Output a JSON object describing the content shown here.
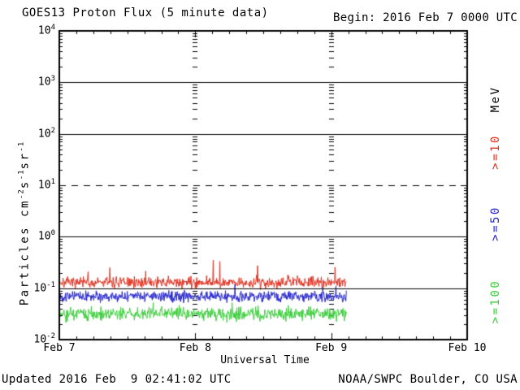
{
  "title": "GOES13 Proton Flux (5 minute data)",
  "begin_label": "Begin: 2016 Feb 7 0000 UTC",
  "footer": {
    "updated": "Updated 2016 Feb  9 02:41:02 UTC",
    "credit": "NOAA/SWPC Boulder, CO USA"
  },
  "axes": {
    "xlabel": "Universal Time",
    "x_ticks": [
      "Feb 7",
      "Feb 8",
      "Feb 9",
      "Feb 10"
    ],
    "y_exponents": [
      "4",
      "3",
      "2",
      "1",
      "0",
      "-1",
      "-2"
    ],
    "ylabel_parts": [
      [
        "t",
        "Particles cm"
      ],
      [
        "s",
        "-2"
      ],
      [
        "t",
        "s"
      ],
      [
        "s",
        "-1"
      ],
      [
        "t",
        "sr"
      ],
      [
        "s",
        "-1"
      ]
    ]
  },
  "right_labels": [
    {
      "text": "MeV",
      "color": "#000000"
    },
    {
      "text": ">=10",
      "color": "#e1301f"
    },
    {
      "text": ">=50",
      "color": "#2424cd"
    },
    {
      "text": ">=100",
      "color": "#3ccd3c"
    }
  ],
  "chart_data": {
    "type": "line",
    "title": "GOES13 Proton Flux (5 minute data)",
    "xlabel": "Universal Time",
    "ylabel": "Particles cm-2s-1sr-1",
    "x_axis": {
      "start": "2016 Feb 7 0000 UTC",
      "end": "2016 Feb 10 0000 UTC",
      "tick_labels": [
        "Feb 7",
        "Feb 8",
        "Feb 9",
        "Feb 10"
      ],
      "minor_tick_hours": 3,
      "interior_day_gridlines": [
        "Feb 8",
        "Feb 9"
      ]
    },
    "y_axis": {
      "scale": "log",
      "min": 0.01,
      "max": 10000,
      "decade_ticks": [
        10000,
        1000,
        100,
        10,
        1,
        0.1,
        0.01
      ],
      "solid_gridlines": [
        1000,
        100,
        1,
        0.1
      ],
      "dashed_gridline": 10
    },
    "cadence_minutes": 5,
    "data_duration_days": 2.112,
    "data_end": "2016 Feb 9 ~0241 UTC",
    "series": [
      {
        "name": ">=10 MeV",
        "color": "#e1301f",
        "approx_mean": 0.13,
        "approx_min": 0.08,
        "approx_max": 0.38,
        "seed": 7,
        "log10_mean": -0.885,
        "log10_sd": 0.075,
        "spike_prob": 0.02,
        "spike_amp": 0.45,
        "floor": 0.078
      },
      {
        "name": ">=50 MeV",
        "color": "#2424cd",
        "approx_mean": 0.07,
        "approx_min": 0.042,
        "approx_max": 0.13,
        "seed": 13,
        "log10_mean": -1.16,
        "log10_sd": 0.07,
        "spike_prob": 0.012,
        "spike_amp": 0.22,
        "floor": 0.04
      },
      {
        "name": ">=100 MeV",
        "color": "#3ccd3c",
        "approx_mean": 0.031,
        "approx_min": 0.017,
        "approx_max": 0.07,
        "seed": 21,
        "log10_mean": -1.5,
        "log10_sd": 0.09,
        "spike_prob": 0.012,
        "spike_amp": 0.25,
        "floor": 0.017
      }
    ]
  }
}
